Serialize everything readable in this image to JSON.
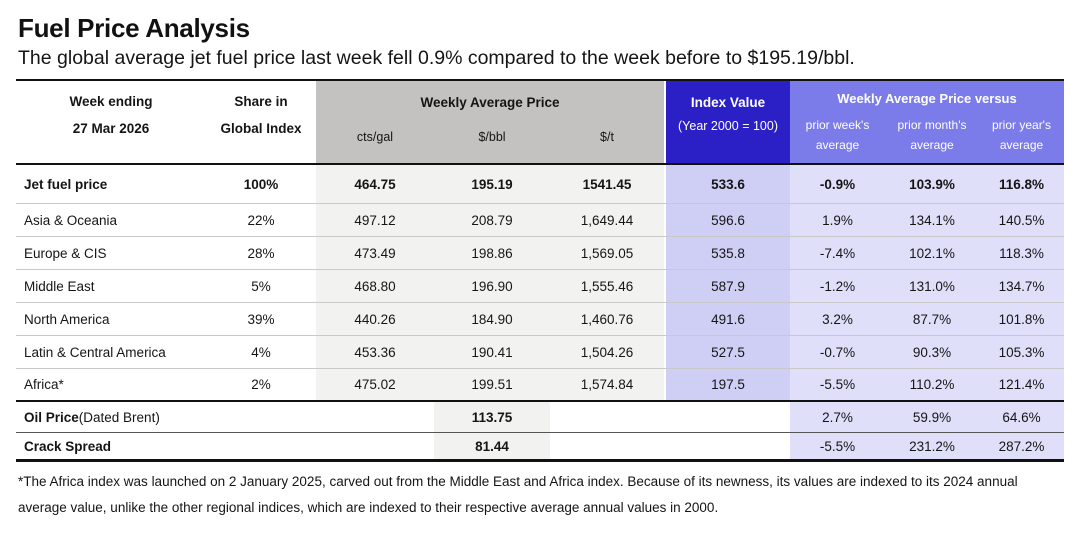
{
  "page": {
    "title": "Fuel Price Analysis",
    "subtitle": "The global average jet fuel price last week fell 0.9% compared to the week before to $195.19/bbl.",
    "footnote": "*The Africa index was launched on 2 January 2025, carved out from the Middle East and Africa index. Because of its newness, its values are indexed  to its 2024 annual average value, unlike the other regional indices, which are indexed to their respective average annual values in 2000."
  },
  "colors": {
    "index_header_bg": "#2b1fc6",
    "versus_header_bg": "#7b7ce9",
    "price_group_header_bg": "#c3c2c1",
    "index_cell_bg": "#cfcff5",
    "versus_cell_bg": "#dfdffa",
    "price_cell_bg": "#f2f2f0",
    "heavy_rule": "#111111",
    "light_rule": "#c9c9c9"
  },
  "header": {
    "week_ending_label": "Week ending",
    "week_ending_date": "27 Mar 2026",
    "share_line1": "Share in",
    "share_line2": "Global Index",
    "price_group_label": "Weekly Average Price",
    "price_units": [
      "cts/gal",
      "$/bbl",
      "$/t"
    ],
    "index_label": "Index Value",
    "index_sub": "(Year 2000 = 100)",
    "versus_group_label": "Weekly Average Price versus",
    "versus_cols": [
      {
        "line1": "prior week's",
        "line2": "average"
      },
      {
        "line1": "prior month's",
        "line2": "average"
      },
      {
        "line1": "prior year's",
        "line2": "average"
      }
    ]
  },
  "rows": [
    {
      "label": "Jet fuel price",
      "share": "100%",
      "cts_gal": "464.75",
      "usd_bbl": "195.19",
      "usd_t": "1541.45",
      "index": "533.6",
      "vs_week": "-0.9%",
      "vs_month": "103.9%",
      "vs_year": "116.8%"
    },
    {
      "label": "Asia & Oceania",
      "share": "22%",
      "cts_gal": "497.12",
      "usd_bbl": "208.79",
      "usd_t": "1,649.44",
      "index": "596.6",
      "vs_week": "1.9%",
      "vs_month": "134.1%",
      "vs_year": "140.5%"
    },
    {
      "label": "Europe & CIS",
      "share": "28%",
      "cts_gal": "473.49",
      "usd_bbl": "198.86",
      "usd_t": "1,569.05",
      "index": "535.8",
      "vs_week": "-7.4%",
      "vs_month": "102.1%",
      "vs_year": "118.3%"
    },
    {
      "label": "Middle East",
      "share": "5%",
      "cts_gal": "468.80",
      "usd_bbl": "196.90",
      "usd_t": "1,555.46",
      "index": "587.9",
      "vs_week": "-1.2%",
      "vs_month": "131.0%",
      "vs_year": "134.7%"
    },
    {
      "label": "North America",
      "share": "39%",
      "cts_gal": "440.26",
      "usd_bbl": "184.90",
      "usd_t": "1,460.76",
      "index": "491.6",
      "vs_week": "3.2%",
      "vs_month": "87.7%",
      "vs_year": "101.8%"
    },
    {
      "label": "Latin & Central America",
      "share": "4%",
      "cts_gal": "453.36",
      "usd_bbl": "190.41",
      "usd_t": "1,504.26",
      "index": "527.5",
      "vs_week": "-0.7%",
      "vs_month": "90.3%",
      "vs_year": "105.3%"
    },
    {
      "label": "Africa*",
      "share": "2%",
      "cts_gal": "475.02",
      "usd_bbl": "199.51",
      "usd_t": "1,574.84",
      "index": "197.5",
      "vs_week": "-5.5%",
      "vs_month": "110.2%",
      "vs_year": "121.4%"
    }
  ],
  "extra_rows": {
    "oil": {
      "label_bold": "Oil Price",
      "label_normal": " (Dated Brent)",
      "usd_bbl": "113.75",
      "vs_week": "2.7%",
      "vs_month": "59.9%",
      "vs_year": "64.6%"
    },
    "crack": {
      "label_bold": "Crack Spread",
      "usd_bbl": "81.44",
      "vs_week": "-5.5%",
      "vs_month": "231.2%",
      "vs_year": "287.2%"
    }
  }
}
